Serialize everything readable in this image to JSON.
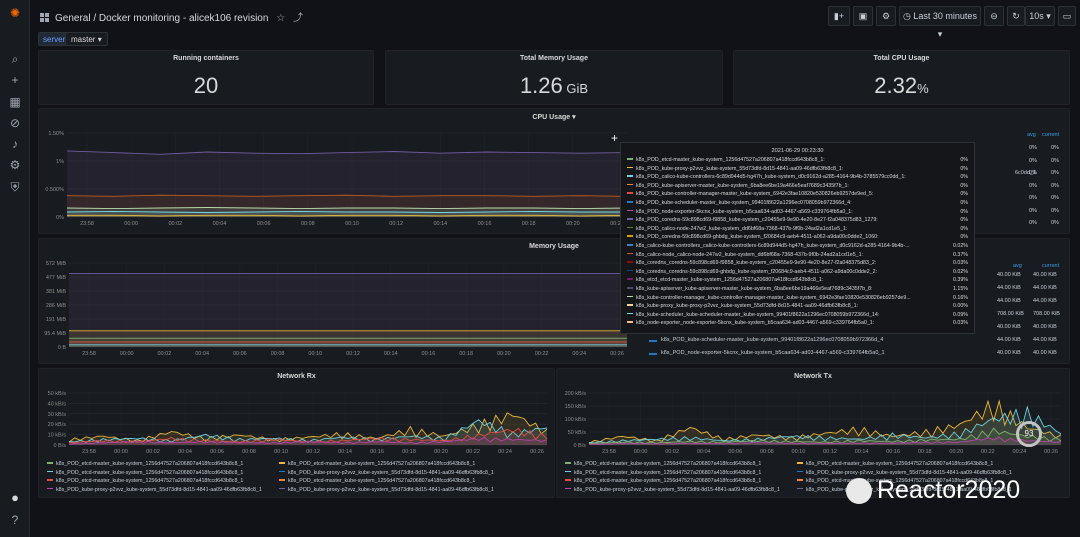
{
  "sidebar": {
    "items": [
      {
        "name": "grafana-logo-icon",
        "glyph": "✺"
      },
      {
        "name": "search-icon",
        "glyph": "⌕"
      },
      {
        "name": "plus-icon",
        "glyph": "+"
      },
      {
        "name": "dashboards-icon",
        "glyph": "▦"
      },
      {
        "name": "explore-icon",
        "glyph": "⊘"
      },
      {
        "name": "bell-icon",
        "glyph": "♪"
      },
      {
        "name": "gear-icon",
        "glyph": "⚙"
      },
      {
        "name": "shield-icon",
        "glyph": "⛨"
      },
      {
        "name": "user-avatar-icon",
        "glyph": "●"
      },
      {
        "name": "help-icon",
        "glyph": "?"
      }
    ]
  },
  "header": {
    "breadcrumb": "General / Docker monitoring - alicek106 revision",
    "star_glyph": "☆",
    "share_glyph": "⤴",
    "add_panel_glyph": "▮+",
    "save_glyph": "▣",
    "settings_glyph": "⚙",
    "time_range": "Last 30 minutes",
    "zoom_glyph": "⊖",
    "refresh_glyph": "↻",
    "refresh_interval": "10s",
    "tv_glyph": "▭"
  },
  "variables": {
    "label": "server",
    "value": "master"
  },
  "stats": [
    {
      "title": "Running containers",
      "value": "20",
      "unit": ""
    },
    {
      "title": "Total Memory Usage",
      "value": "1.26",
      "unit": " GiB"
    },
    {
      "title": "Total CPU Usage",
      "value": "2.32",
      "unit": "%"
    }
  ],
  "cpu_panel": {
    "title": "CPU Usage",
    "yticks": [
      "1.50%",
      "1%",
      "0.500%",
      "0%"
    ],
    "xticks": [
      "23:58",
      "00:00",
      "00:02",
      "00:04",
      "00:06",
      "00:08",
      "00:10",
      "00:12",
      "00:14",
      "00:16",
      "00:18",
      "00:20",
      "00:22"
    ],
    "legend_headers": [
      "avg",
      "current"
    ],
    "legend_values": [
      [
        "0%",
        "0%"
      ],
      [
        "0%",
        "0%"
      ],
      [
        "0%",
        "0%"
      ],
      [
        "0%",
        "0%"
      ],
      [
        "0%",
        "0%"
      ],
      [
        "0%",
        "0%"
      ],
      [
        "0%",
        "0%"
      ]
    ],
    "legend_partial": "6c0dd_1"
  },
  "memory_panel": {
    "title": "Memory Usage",
    "yticks": [
      "572 MiB",
      "477 MiB",
      "381 MiB",
      "286 MiB",
      "191 MiB",
      "95.4 MiB",
      "0 B"
    ],
    "xticks": [
      "23:58",
      "00:00",
      "00:02",
      "00:04",
      "00:06",
      "00:08",
      "00:10",
      "00:12",
      "00:14",
      "00:16",
      "00:18",
      "00:20",
      "00:22",
      "00:24",
      "00:26"
    ],
    "legend_headers": [
      "avg",
      "current"
    ],
    "legend_rows": [
      {
        "avg": "40.00 KiB",
        "current": "40.00 KiB"
      },
      {
        "avg": "44.00 KiB",
        "current": "44.00 KiB"
      },
      {
        "avg": "44.00 KiB",
        "current": "44.00 KiB"
      },
      {
        "avg": "708.00 KiB",
        "current": "708.00 KiB"
      },
      {
        "avg": "40.00 KiB",
        "current": "40.00 KiB"
      },
      {
        "label": "k8s_POD_kube-scheduler-master_kube-system_99401f8622a1296ec0708059b972366d_4",
        "avg": "44.00 KiB",
        "current": "44.00 KiB",
        "color": "#1f78c1"
      },
      {
        "label": "k8s_POD_node-exporter-5kcnx_kube-system_b5caa634-ad03-4467-a569-c339764fb5a0_1",
        "avg": "40.00 KiB",
        "current": "40.00 KiB",
        "color": "#1f78c1"
      }
    ]
  },
  "tooltip": {
    "time": "2021-06-29 00:23:30",
    "rows": [
      {
        "label": "k8s_POD_etcd-master_kube-system_1256d47527a206807a418fccd643b8c8_1:",
        "value": "0%",
        "color": "#7eb26d"
      },
      {
        "label": "k8s_POD_kube-proxy-p2vvz_kube-system_55d73dfd-8d15-4841-aa09-46dfb63fb8c8_1:",
        "value": "0%",
        "color": "#eab839"
      },
      {
        "label": "k8s_POD_calico-kube-controllers-6c89d944d5-hg47h_kube-system_d0c9162d-a285-4164-9b4b-3785579cc0dd_1:",
        "value": "0%",
        "color": "#6ed0e0"
      },
      {
        "label": "k8s_POD_kube-apiserver-master_kube-system_6ba8ee6be19a466e5eaf7689c3435f7b_1:",
        "value": "0%",
        "color": "#ef843c"
      },
      {
        "label": "k8s_POD_kube-controller-manager-master_kube-system_6942e3fae10820e530826eb9257de9ed_5:",
        "value": "0%",
        "color": "#e24d42"
      },
      {
        "label": "k8s_POD_kube-scheduler-master_kube-system_99401f8622a1296ec0708059b972366d_4:",
        "value": "0%",
        "color": "#1f78c1"
      },
      {
        "label": "k8s_POD_node-exporter-5kcnx_kube-system_b5caa634-ad03-4467-a569-c339764fb5a0_1:",
        "value": "0%",
        "color": "#ba43a9"
      },
      {
        "label": "k8s_POD_coredns-59c898cd69-f9858_kube-system_c20455e9-9e90-4e20-8e27-f2a048375d83_1279:",
        "value": "0%",
        "color": "#705da0"
      },
      {
        "label": "k8s_POD_calico-node-247w2_kube-system_dd6bf68a-7368-437b-9f0b-24ad2a1cd1e5_1:",
        "value": "0%",
        "color": "#508642"
      },
      {
        "label": "k8s_POD_coredns-59c898cd69-ghbdg_kube-system_f20684c9-aeb4-4511-a062-a9da00c0dde2_1060:",
        "value": "0%",
        "color": "#cca300"
      },
      {
        "label": "k8s_calico-kube-controllers_calico-kube-controllers-6c89d944d5-hg47h_kube-system_d0c9162d-a285-4164-9b4b-...",
        "value": "0.02%",
        "color": "#447ebc"
      },
      {
        "label": "k8s_calico-node_calico-node-247w2_kube-system_dd6bf68a-7368-437b-9f0b-24ad2a1cd1e5_1:",
        "value": "0.37%",
        "color": "#c15c17"
      },
      {
        "label": "k8s_coredns_coredns-59c898cd69-f9858_kube-system_c20455e9-9e90-4e20-8e27-f2a048375d83_2:",
        "value": "0.03%",
        "color": "#890f02"
      },
      {
        "label": "k8s_coredns_coredns-59c898cd69-ghbdg_kube-system_f20684c9-aeb4-4511-a062-a9da00c0dde2_2:",
        "value": "0.02%",
        "color": "#0a437c"
      },
      {
        "label": "k8s_etcd_etcd-master_kube-system_1256d47527a206807a418fccd643b8c8_1:",
        "value": "0.39%",
        "color": "#6d1f62"
      },
      {
        "label": "k8s_kube-apiserver_kube-apiserver-master_kube-system_6ba8ee6be19a466e5eaf7689c3435f7b_8:",
        "value": "1.15%",
        "color": "#584477"
      },
      {
        "label": "k8s_kube-controller-manager_kube-controller-manager-master_kube-system_6942e3fae10820e530826eb9257de9...",
        "value": "0.16%",
        "color": "#b7dbab"
      },
      {
        "label": "k8s_kube-proxy_kube-proxy-p2vvz_kube-system_55d73dfd-8d15-4841-aa09-46dfb63fb8c8_1:",
        "value": "0.00%",
        "color": "#f4d598"
      },
      {
        "label": "k8s_kube-scheduler_kube-scheduler-master_kube-system_99401f8622a1296ec0708059b972366d_14:",
        "value": "0.09%",
        "color": "#70dbed"
      },
      {
        "label": "k8s_node-exporter_node-exporter-5kcnx_kube-system_b5caa634-ad03-4467-a569-c339764fb5a0_1:",
        "value": "0.03%",
        "color": "#f9ba8f"
      }
    ]
  },
  "network_rx": {
    "title": "Network Rx",
    "yticks": [
      "50 kB/s",
      "40 kB/s",
      "30 kB/s",
      "20 kB/s",
      "10 kB/s",
      "0 B/s"
    ],
    "xticks": [
      "23:58",
      "00:00",
      "00:02",
      "00:04",
      "00:06",
      "00:08",
      "00:10",
      "00:12",
      "00:14",
      "00:16",
      "00:18",
      "00:20",
      "00:22",
      "00:24",
      "00:26"
    ],
    "legend": [
      {
        "label": "k8s_POD_etcd-master_kube-system_1256d47527a206807a418fccd643b8c8_1",
        "color": "#7eb26d"
      },
      {
        "label": "k8s_POD_etcd-master_kube-system_1256d47527a206807a418fccd643b8c8_1",
        "color": "#eab839"
      },
      {
        "label": "k8s_POD_etcd-master_kube-system_1256d47527a206807a418fccd643b8c8_1",
        "color": "#6ed0e0"
      },
      {
        "label": "k8s_POD_kube-proxy-p2vvz_kube-system_55d73dfd-8d15-4841-aa09-46dfb63fb8c8_1",
        "color": "#1f78c1"
      },
      {
        "label": "k8s_POD_etcd-master_kube-system_1256d47527a206807a418fccd643b8c8_1",
        "color": "#e24d42"
      },
      {
        "label": "k8s_POD_etcd-master_kube-system_1256d47527a206807a418fccd643b8c8_1",
        "color": "#ef843c"
      },
      {
        "label": "k8s_POD_kube-proxy-p2vvz_kube-system_55d73dfd-8d15-4841-aa09-46dfb63fb8c8_1",
        "color": "#ba43a9"
      },
      {
        "label": "k8s_POD_kube-proxy-p2vvz_kube-system_55d73dfd-8d15-4841-aa09-46dfb63fb8c8_1",
        "color": "#705da0"
      }
    ]
  },
  "network_tx": {
    "title": "Network Tx",
    "yticks": [
      "200 kB/s",
      "150 kB/s",
      "100 kB/s",
      "50 kB/s",
      "0 B/s"
    ],
    "xticks": [
      "23:58",
      "00:00",
      "00:02",
      "00:04",
      "00:06",
      "00:08",
      "00:10",
      "00:12",
      "00:14",
      "00:16",
      "00:18",
      "00:20",
      "00:22",
      "00:24",
      "00:26"
    ],
    "legend": [
      {
        "label": "k8s_POD_etcd-master_kube-system_1256d47527a206807a418fccd643b8c8_1",
        "color": "#7eb26d"
      },
      {
        "label": "k8s_POD_etcd-master_kube-system_1256d47527a206807a418fccd643b8c8_1",
        "color": "#eab839"
      },
      {
        "label": "k8s_POD_etcd-master_kube-system_1256d47527a206807a418fccd643b8c8_1",
        "color": "#6ed0e0"
      },
      {
        "label": "k8s_POD_kube-proxy-p2vvz_kube-system_55d73dfd-8d15-4841-aa09-46dfb63fb8c8_1",
        "color": "#1f78c1"
      },
      {
        "label": "k8s_POD_etcd-master_kube-system_1256d47527a206807a418fccd643b8c8_1",
        "color": "#e24d42"
      },
      {
        "label": "k8s_POD_etcd-master_kube-system_1256d47527a206807a418fccd643b8c8_1",
        "color": "#ef843c"
      },
      {
        "label": "k8s_POD_kube-proxy-p2vvz_kube-system_55d73dfd-8d15-4841-aa09-46dfb63fb8c8_1",
        "color": "#ba43a9"
      },
      {
        "label": "k8s_POD_kube-proxy-p2vvz_kube-system_55d73dfd-8d15-4841-aa09-46dfb63fb8c8_1",
        "color": "#705da0"
      }
    ]
  },
  "gauge": {
    "value": "93"
  },
  "watermark": {
    "text": "Reactor2020"
  },
  "chart_data": [
    {
      "type": "line",
      "title": "CPU Usage",
      "ylim": [
        0,
        1.5
      ],
      "yunit": "%",
      "x": [
        "23:58",
        "00:00",
        "00:02",
        "00:04",
        "00:06",
        "00:08",
        "00:10",
        "00:12",
        "00:14",
        "00:16",
        "00:18",
        "00:20",
        "00:22"
      ],
      "series": [
        {
          "values": [
            1.18,
            1.15,
            1.12,
            1.16,
            1.14,
            1.13,
            1.15,
            1.17,
            1.14,
            1.16,
            1.15,
            1.14,
            1.15
          ],
          "color": "#705da0"
        },
        {
          "values": [
            0.38,
            0.37,
            0.39,
            0.38,
            0.37,
            0.38,
            0.39,
            0.37,
            0.38,
            0.38,
            0.37,
            0.38,
            0.37
          ],
          "color": "#c15c17"
        },
        {
          "values": [
            0.16,
            0.15,
            0.16,
            0.17,
            0.16,
            0.15,
            0.16,
            0.16,
            0.15,
            0.16,
            0.16,
            0.15,
            0.16
          ],
          "color": "#b7dbab"
        },
        {
          "values": [
            0.09,
            0.1,
            0.09,
            0.08,
            0.09,
            0.1,
            0.09,
            0.09,
            0.08,
            0.09,
            0.1,
            0.09,
            0.09
          ],
          "color": "#70dbed"
        },
        {
          "values": [
            0.03,
            0.03,
            0.02,
            0.03,
            0.03,
            0.02,
            0.03,
            0.03,
            0.02,
            0.03,
            0.03,
            0.02,
            0.03
          ],
          "color": "#eab839"
        }
      ]
    },
    {
      "type": "line",
      "title": "Memory Usage",
      "ylim": [
        0,
        572
      ],
      "yunit": "MiB",
      "x": [
        "23:58",
        "00:00",
        "00:02",
        "00:04",
        "00:06",
        "00:08",
        "00:10",
        "00:12",
        "00:14",
        "00:16",
        "00:18",
        "00:20",
        "00:22",
        "00:24",
        "00:26"
      ],
      "series": [
        {
          "values": [
            500,
            500,
            500,
            500,
            500,
            500,
            500,
            500,
            500,
            500,
            500,
            500,
            500,
            500,
            500
          ],
          "color": "#705da0"
        },
        {
          "values": [
            110,
            110,
            110,
            110,
            110,
            110,
            110,
            110,
            110,
            110,
            110,
            110,
            110,
            110,
            110
          ],
          "color": "#eab839"
        },
        {
          "values": [
            60,
            60,
            60,
            60,
            60,
            60,
            60,
            60,
            60,
            60,
            60,
            60,
            60,
            60,
            60
          ],
          "color": "#7eb26d"
        },
        {
          "values": [
            35,
            35,
            35,
            35,
            35,
            35,
            35,
            35,
            35,
            35,
            35,
            35,
            35,
            35,
            35
          ],
          "color": "#e24d42"
        },
        {
          "values": [
            15,
            15,
            15,
            15,
            15,
            15,
            15,
            15,
            15,
            15,
            15,
            15,
            15,
            15,
            15
          ],
          "color": "#6ed0e0"
        }
      ]
    },
    {
      "type": "line",
      "title": "Network Rx",
      "ylim": [
        0,
        55
      ],
      "yunit": "kB/s",
      "x": [
        "23:58",
        "00:00",
        "00:02",
        "00:04",
        "00:06",
        "00:08",
        "00:10",
        "00:12",
        "00:14",
        "00:16",
        "00:18",
        "00:20",
        "00:22",
        "00:24",
        "00:26"
      ],
      "series": [
        {
          "values": [
            5,
            8,
            4,
            12,
            6,
            9,
            5,
            7,
            10,
            6,
            14,
            8,
            18,
            28,
            12
          ],
          "color": "#eab839"
        },
        {
          "values": [
            3,
            5,
            6,
            4,
            9,
            5,
            6,
            4,
            7,
            5,
            8,
            6,
            22,
            10,
            16
          ],
          "color": "#6ed0e0"
        },
        {
          "values": [
            2,
            4,
            3,
            6,
            4,
            3,
            5,
            3,
            4,
            6,
            5,
            4,
            9,
            14,
            8
          ],
          "color": "#e24d42"
        },
        {
          "values": [
            1,
            2,
            3,
            2,
            3,
            2,
            2,
            3,
            2,
            3,
            2,
            3,
            6,
            5,
            4
          ],
          "color": "#ba43a9"
        }
      ]
    },
    {
      "type": "line",
      "title": "Network Tx",
      "ylim": [
        0,
        210
      ],
      "yunit": "kB/s",
      "x": [
        "23:58",
        "00:00",
        "00:02",
        "00:04",
        "00:06",
        "00:08",
        "00:10",
        "00:12",
        "00:14",
        "00:16",
        "00:18",
        "00:20",
        "00:22",
        "00:24",
        "00:26"
      ],
      "series": [
        {
          "values": [
            10,
            30,
            15,
            60,
            20,
            35,
            25,
            40,
            55,
            30,
            45,
            70,
            140,
            60,
            30
          ],
          "color": "#eab839"
        },
        {
          "values": [
            8,
            15,
            20,
            25,
            15,
            20,
            30,
            25,
            20,
            35,
            25,
            40,
            90,
            110,
            40
          ],
          "color": "#6ed0e0"
        },
        {
          "values": [
            5,
            10,
            8,
            12,
            10,
            15,
            12,
            10,
            15,
            12,
            18,
            20,
            50,
            30,
            20
          ],
          "color": "#7eb26d"
        },
        {
          "values": [
            2,
            5,
            4,
            6,
            5,
            8,
            6,
            5,
            7,
            6,
            9,
            10,
            25,
            15,
            10
          ],
          "color": "#ba43a9"
        }
      ]
    }
  ]
}
